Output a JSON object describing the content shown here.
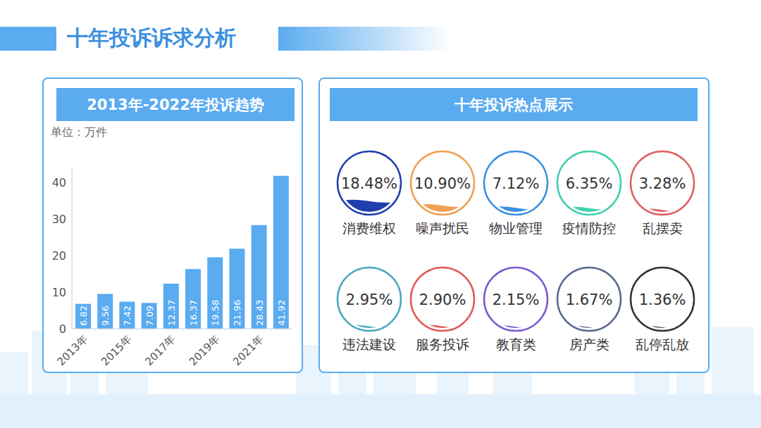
{
  "title": "十年投诉诉求分析",
  "chart_data": [
    {
      "type": "bar",
      "title": "2013年-2022年投诉趋势",
      "y_label": "单位：万件",
      "categories": [
        "2013年",
        null,
        "2015年",
        null,
        "2017年",
        null,
        "2019年",
        null,
        "2021年",
        null
      ],
      "values": [
        6.82,
        9.56,
        7.42,
        7.09,
        12.37,
        16.37,
        19.58,
        21.96,
        28.43,
        41.92
      ],
      "color": "#5aabf0",
      "ylim": [
        0,
        44
      ],
      "yticks": [
        0,
        10,
        20,
        30,
        40
      ],
      "grid": false,
      "data_labels": true
    },
    {
      "type": "liquid",
      "title": "十年投诉热点展示",
      "categories": [
        "消费维权",
        "噪声扰民",
        "物业管理",
        "疫情防控",
        "乱摆卖",
        "违法建设",
        "服务投诉",
        "教育类",
        "房产类",
        "乱停乱放"
      ],
      "values": [
        18.48,
        10.9,
        7.12,
        6.35,
        3.28,
        2.95,
        2.9,
        2.15,
        1.67,
        1.36
      ],
      "value_labels": [
        "18.48%",
        "10.90%",
        "7.12%",
        "6.35%",
        "3.28%",
        "2.95%",
        "2.90%",
        "2.15%",
        "1.67%",
        "1.36%"
      ],
      "colors": [
        "#1f3fae",
        "#f0a050",
        "#3a8fe0",
        "#3fd0b0",
        "#e06060",
        "#4aa8c0",
        "#e05a5a",
        "#7a5ad0",
        "#5a6a90",
        "#333333"
      ],
      "ylim": [
        0,
        100
      ],
      "tick_labels": false
    }
  ]
}
